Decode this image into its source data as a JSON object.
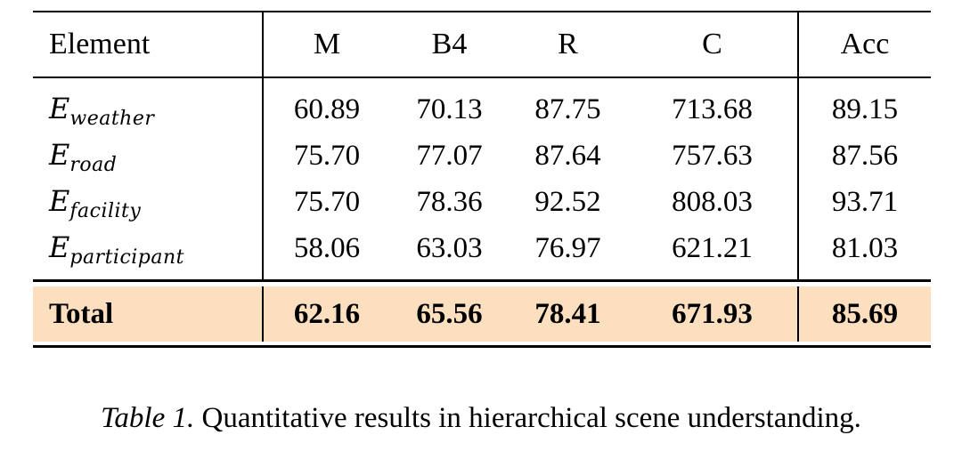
{
  "table": {
    "columns": [
      "Element",
      "M",
      "B4",
      "R",
      "C",
      "Acc"
    ],
    "rows": [
      {
        "label_main": "E",
        "label_sub": "weather",
        "values": [
          "60.89",
          "70.13",
          "87.75",
          "713.68",
          "89.15"
        ]
      },
      {
        "label_main": "E",
        "label_sub": "road",
        "values": [
          "75.70",
          "77.07",
          "87.64",
          "757.63",
          "87.56"
        ]
      },
      {
        "label_main": "E",
        "label_sub": "facility",
        "values": [
          "75.70",
          "78.36",
          "92.52",
          "808.03",
          "93.71"
        ]
      },
      {
        "label_main": "E",
        "label_sub": "participant",
        "values": [
          "58.06",
          "63.03",
          "76.97",
          "621.21",
          "81.03"
        ]
      }
    ],
    "total": {
      "label": "Total",
      "values": [
        "62.16",
        "65.56",
        "78.41",
        "671.93",
        "85.69"
      ]
    },
    "highlight_color": "#fcdfbf",
    "rule_color": "#000000"
  },
  "caption": {
    "label": "Table 1.",
    "text": " Quantitative results in hierarchical scene understanding."
  }
}
